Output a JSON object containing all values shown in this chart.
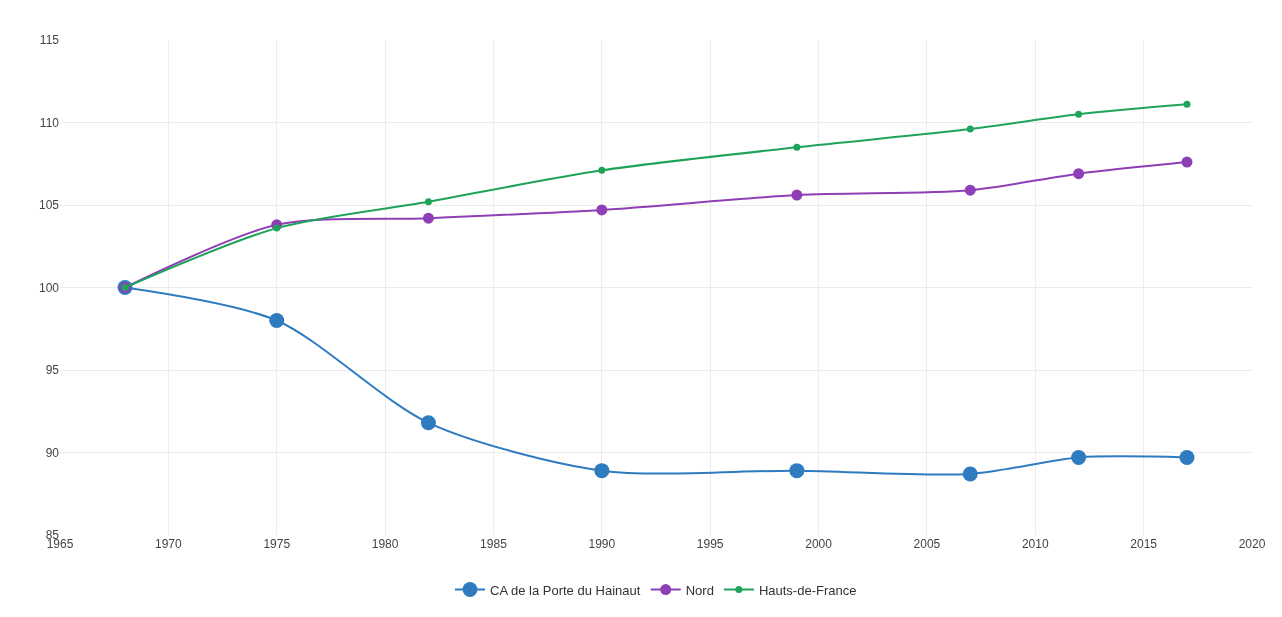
{
  "chart_data": {
    "type": "line",
    "x": [
      1968,
      1975,
      1982,
      1990,
      1999,
      2007,
      2012,
      2017
    ],
    "series": [
      {
        "name": "CA de la Porte du Hainaut",
        "color": "#2e7bbf",
        "values": [
          100,
          98,
          91.8,
          88.9,
          88.9,
          88.7,
          89.7,
          89.7
        ]
      },
      {
        "name": "Nord",
        "color": "#8e3fb5",
        "values": [
          100,
          103.8,
          104.2,
          104.7,
          105.6,
          105.9,
          106.9,
          107.6
        ]
      },
      {
        "name": "Hauts-de-France",
        "color": "#1fa35a",
        "values": [
          100,
          103.6,
          105.2,
          107.1,
          108.5,
          109.6,
          110.5,
          111.1
        ]
      }
    ],
    "xlim": [
      1965,
      2020
    ],
    "xticks": [
      1965,
      1970,
      1975,
      1980,
      1985,
      1990,
      1995,
      2000,
      2005,
      2010,
      2015,
      2020
    ],
    "ylim": [
      85,
      115
    ],
    "yticks": [
      85,
      90,
      95,
      100,
      105,
      110,
      115
    ],
    "grid": true,
    "legend": "bottom",
    "marker": "circle",
    "line_style": "solid"
  }
}
